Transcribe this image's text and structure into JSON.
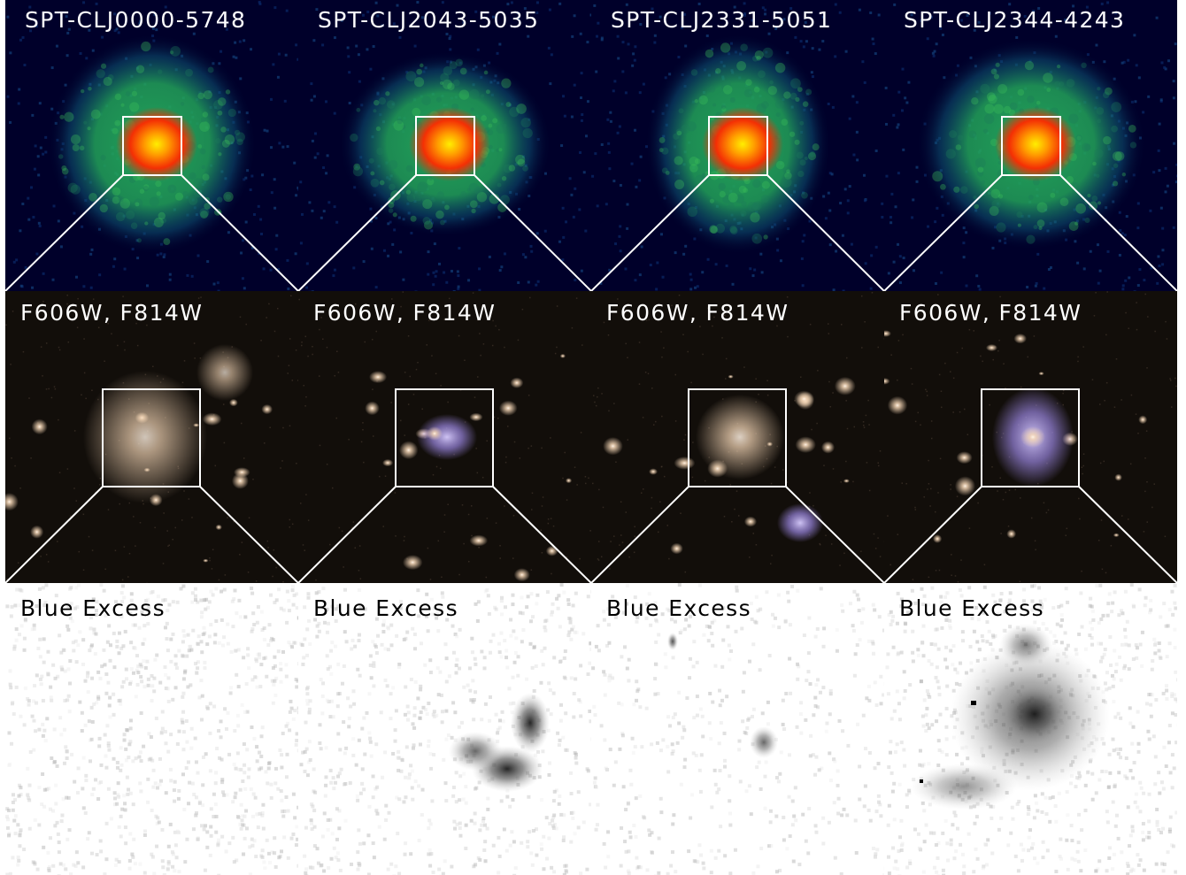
{
  "clusters": [
    "SPT-CLJ0000-5748",
    "SPT-CLJ2043-5035",
    "SPT-CLJ2331-5051",
    "SPT-CLJ2344-4243"
  ],
  "optical_label": "F606W, F814W",
  "blue_label": "Blue Excess",
  "colors": {
    "xray_background": "#00002a",
    "xray_mid": "#22a35a",
    "xray_core": "#ff2a00",
    "xray_peak": "#ffee00",
    "optical_background": "#120e0a",
    "optical_galaxy": "#f2d4b4",
    "optical_blue": "#9a86e0",
    "blue_excess_background": "#ffffff",
    "outline": "#ffffff"
  }
}
